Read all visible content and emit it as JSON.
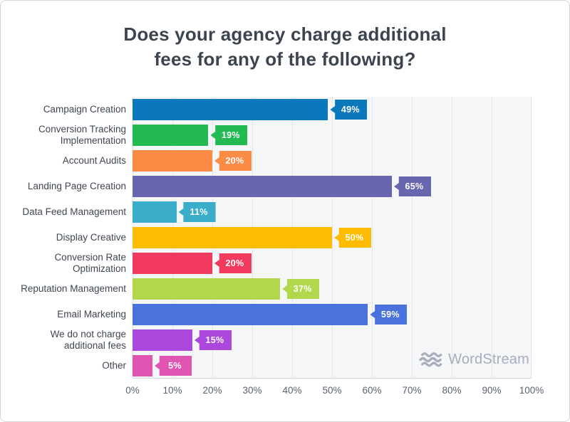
{
  "title": {
    "line1": "Does your agency charge additional",
    "line2": "fees for any of the following?"
  },
  "chart_data": {
    "type": "bar",
    "orientation": "horizontal",
    "title": "Does your agency charge additional fees for any of the following?",
    "categories": [
      "Campaign Creation",
      "Conversion Tracking Implementation",
      "Account Audits",
      "Landing Page Creation",
      "Data Feed Management",
      "Display Creative",
      "Conversion Rate Optimization",
      "Reputation Management",
      "Email Marketing",
      "We do not charge additional fees",
      "Other"
    ],
    "values": [
      49,
      19,
      20,
      65,
      11,
      50,
      20,
      37,
      59,
      15,
      5
    ],
    "value_labels": [
      "49%",
      "19%",
      "20%",
      "65%",
      "11%",
      "50%",
      "20%",
      "37%",
      "59%",
      "15%",
      "5%"
    ],
    "bar_colors": [
      "#0a78bb",
      "#23ba52",
      "#fc8b45",
      "#6766ae",
      "#3aadca",
      "#fdbc02",
      "#f13a5e",
      "#b1d84d",
      "#4a72dc",
      "#aa48dd",
      "#e055b1"
    ],
    "xlabel": "",
    "ylabel": "",
    "xlim": [
      0,
      100
    ],
    "x_ticks": [
      "0%",
      "10%",
      "20%",
      "30%",
      "40%",
      "50%",
      "60%",
      "70%",
      "80%",
      "90%",
      "100%"
    ],
    "grid": true,
    "legend": false
  },
  "watermark": {
    "text": "WordStream",
    "icon": "waves-icon",
    "color": "#a6adbc"
  },
  "style_colors": {
    "title_text": "#3c4450",
    "category_text": "#3f4651",
    "tick_text": "#5b626e",
    "plot_background": "#f5f6f7",
    "gridline": "#e3e5e8"
  }
}
